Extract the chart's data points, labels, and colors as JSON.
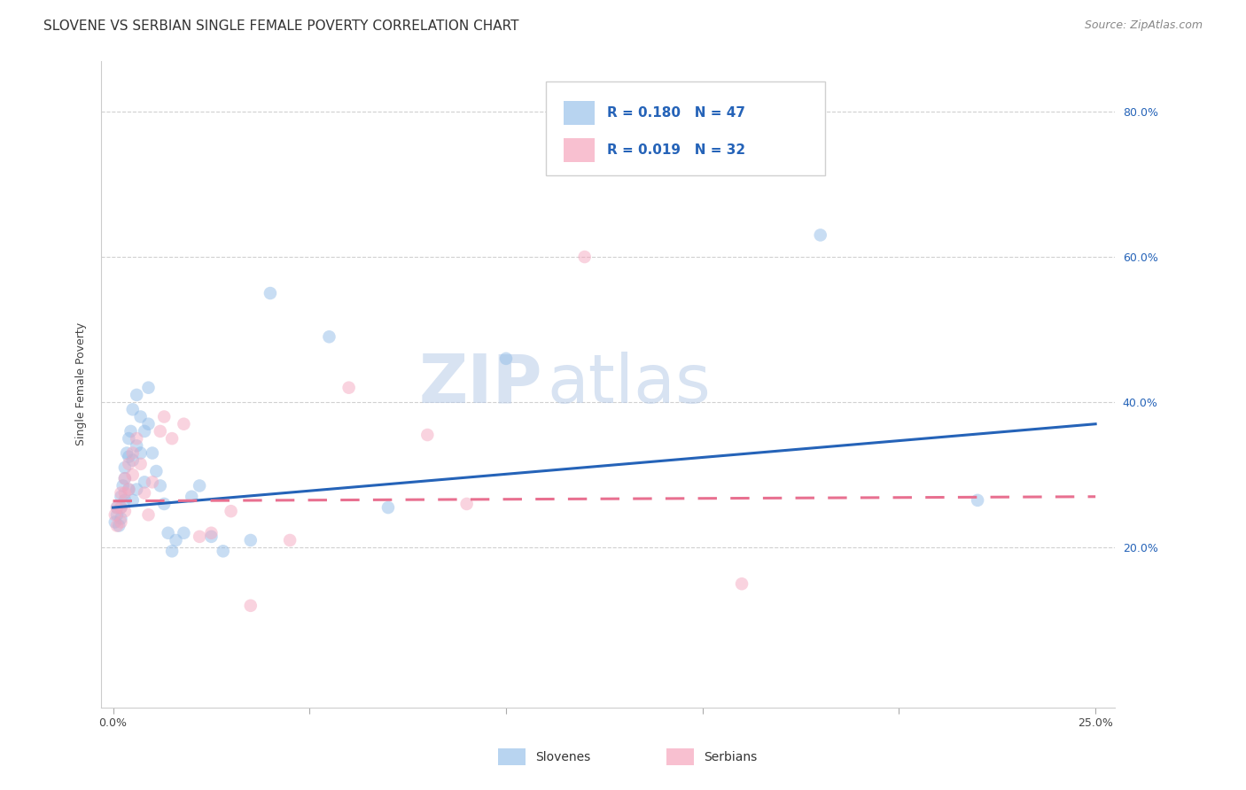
{
  "title": "SLOVENE VS SERBIAN SINGLE FEMALE POVERTY CORRELATION CHART",
  "source": "Source: ZipAtlas.com",
  "ylabel": "Single Female Poverty",
  "xlim": [
    -0.003,
    0.255
  ],
  "ylim": [
    -0.02,
    0.87
  ],
  "xtick_positions": [
    0.0,
    0.05,
    0.1,
    0.15,
    0.2,
    0.25
  ],
  "xtick_labels": [
    "0.0%",
    "",
    "",
    "",
    "",
    "25.0%"
  ],
  "ytick_positions": [
    0.2,
    0.4,
    0.6,
    0.8
  ],
  "ytick_labels": [
    "20.0%",
    "40.0%",
    "60.0%",
    "80.0%"
  ],
  "slovene_color": "#92bce8",
  "serbian_color": "#f5a8c0",
  "slovene_line_color": "#2563b8",
  "serbian_line_color": "#e87090",
  "legend_box_slovene": "#b8d4f0",
  "legend_box_serbian": "#f8c0d0",
  "R_slovene": 0.18,
  "N_slovene": 47,
  "R_serbian": 0.019,
  "N_serbian": 32,
  "slovene_x": [
    0.0005,
    0.001,
    0.001,
    0.0015,
    0.002,
    0.002,
    0.002,
    0.0025,
    0.003,
    0.003,
    0.003,
    0.0035,
    0.004,
    0.004,
    0.004,
    0.0045,
    0.005,
    0.005,
    0.005,
    0.006,
    0.006,
    0.006,
    0.007,
    0.007,
    0.008,
    0.008,
    0.009,
    0.009,
    0.01,
    0.011,
    0.012,
    0.013,
    0.014,
    0.015,
    0.016,
    0.018,
    0.02,
    0.022,
    0.025,
    0.028,
    0.035,
    0.04,
    0.055,
    0.07,
    0.1,
    0.18,
    0.22
  ],
  "slovene_y": [
    0.235,
    0.245,
    0.255,
    0.23,
    0.27,
    0.255,
    0.24,
    0.285,
    0.31,
    0.295,
    0.265,
    0.33,
    0.35,
    0.28,
    0.325,
    0.36,
    0.39,
    0.32,
    0.265,
    0.41,
    0.34,
    0.28,
    0.38,
    0.33,
    0.36,
    0.29,
    0.42,
    0.37,
    0.33,
    0.305,
    0.285,
    0.26,
    0.22,
    0.195,
    0.21,
    0.22,
    0.27,
    0.285,
    0.215,
    0.195,
    0.21,
    0.55,
    0.49,
    0.255,
    0.46,
    0.63,
    0.265
  ],
  "serbian_x": [
    0.0005,
    0.001,
    0.001,
    0.002,
    0.002,
    0.002,
    0.003,
    0.003,
    0.003,
    0.004,
    0.004,
    0.005,
    0.005,
    0.006,
    0.007,
    0.008,
    0.009,
    0.01,
    0.012,
    0.013,
    0.015,
    0.018,
    0.022,
    0.025,
    0.03,
    0.035,
    0.045,
    0.06,
    0.08,
    0.09,
    0.12,
    0.16
  ],
  "serbian_y": [
    0.245,
    0.255,
    0.23,
    0.275,
    0.255,
    0.235,
    0.295,
    0.275,
    0.25,
    0.315,
    0.28,
    0.33,
    0.3,
    0.35,
    0.315,
    0.275,
    0.245,
    0.29,
    0.36,
    0.38,
    0.35,
    0.37,
    0.215,
    0.22,
    0.25,
    0.12,
    0.21,
    0.42,
    0.355,
    0.26,
    0.6,
    0.15
  ],
  "watermark_zip": "ZIP",
  "watermark_atlas": "atlas",
  "title_fontsize": 11,
  "axis_label_fontsize": 9,
  "tick_fontsize": 9,
  "legend_fontsize": 11,
  "source_fontsize": 9,
  "background_color": "#ffffff",
  "grid_color": "#d0d0d0",
  "marker_size": 110,
  "marker_alpha": 0.5,
  "line_width": 2.2
}
